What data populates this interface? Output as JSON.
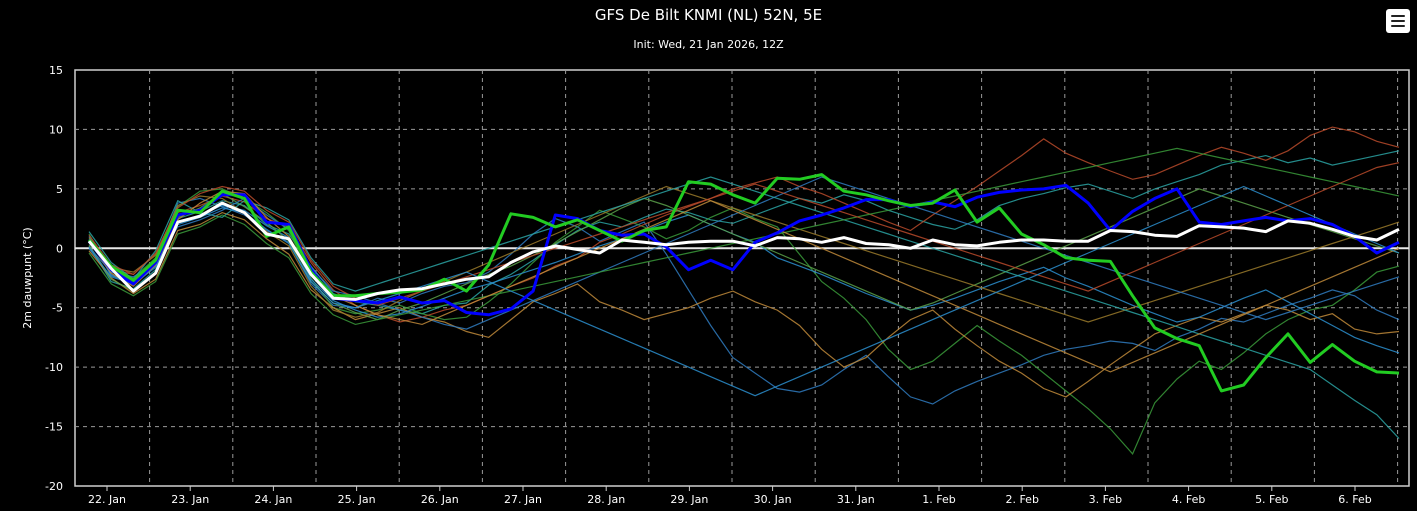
{
  "title": "GFS De Bilt KNMI (NL) 52N, 5E",
  "subtitle": "Init: Wed, 21 Jan 2026, 12Z",
  "menu_icon": "hamburger-menu-icon",
  "chart_data": {
    "type": "line",
    "ylabel": "2m dauwpunt (°C)",
    "ylim": [
      -20,
      15
    ],
    "y_ticks": [
      15,
      10,
      5,
      0,
      -5,
      -10,
      -15,
      -20
    ],
    "x_tick_labels": [
      "22. Jan",
      "23. Jan",
      "24. Jan",
      "25. Jan",
      "26. Jan",
      "27. Jan",
      "28. Jan",
      "29. Jan",
      "30. Jan",
      "31. Jan",
      "1. Feb",
      "2. Feb",
      "3. Feb",
      "4. Feb",
      "5. Feb",
      "6. Feb"
    ],
    "x_time_steps_per_day": 4,
    "grid": true,
    "zero_line": true,
    "colors": {
      "operational": "#0000ff",
      "control": "#22cc22",
      "mean": "#ffffff",
      "members": [
        "#2f7bbf",
        "#2aa3a3",
        "#3a9a3a",
        "#c08a3a",
        "#b84a2a",
        "#2c8fcf",
        "#5aa14a",
        "#9a7a2a"
      ]
    },
    "series": [
      {
        "role": "control",
        "values": [
          0.7,
          -1.5,
          -2.7,
          -1.0,
          3.2,
          3.0,
          4.8,
          4.2,
          1.0,
          1.8,
          -2.0,
          -4.0,
          -4.0,
          -3.8,
          -3.7,
          -3.5,
          -2.6,
          -3.6,
          -1.4,
          2.9,
          2.6,
          1.8,
          2.4,
          1.5,
          0.6,
          1.5,
          1.8,
          5.6,
          5.4,
          4.5,
          3.8,
          5.9,
          5.8,
          6.2,
          4.8,
          4.5,
          4.0,
          3.6,
          3.8,
          4.9,
          2.2,
          3.4,
          1.2,
          0.3,
          -0.8,
          -1.0,
          -1.1,
          -4.0,
          -6.7,
          -7.6,
          -8.2,
          -12.0,
          -11.5,
          -9.2,
          -7.2,
          -9.6,
          -8.1,
          -9.5,
          -10.4,
          -10.5
        ]
      },
      {
        "role": "operational",
        "values": [
          0.6,
          -1.8,
          -3.0,
          -1.2,
          2.8,
          3.2,
          4.5,
          4.5,
          2.2,
          2.0,
          -1.8,
          -4.2,
          -4.4,
          -4.6,
          -4.1,
          -4.6,
          -4.4,
          -5.4,
          -5.6,
          -5.1,
          -3.6,
          2.8,
          2.5,
          1.5,
          1.1,
          1.2,
          0.1,
          -1.8,
          -1.0,
          -1.8,
          0.5,
          1.3,
          2.3,
          2.8,
          3.4,
          4.1,
          4.1,
          3.5,
          3.9,
          3.5,
          4.3,
          4.7,
          4.9,
          5.0,
          5.3,
          3.8,
          1.5,
          3.1,
          4.2,
          5.0,
          2.2,
          2.0,
          2.3,
          2.6,
          2.3,
          2.5,
          2.0,
          1.0,
          -0.4,
          0.5
        ]
      },
      {
        "role": "mean",
        "values": [
          0.6,
          -1.7,
          -3.6,
          -2.1,
          2.2,
          2.7,
          3.8,
          3.0,
          1.2,
          0.8,
          -2.2,
          -4.2,
          -4.3,
          -3.8,
          -3.5,
          -3.4,
          -3.0,
          -2.6,
          -2.4,
          -1.2,
          -0.3,
          0.2,
          -0.1,
          -0.4,
          0.7,
          0.5,
          0.3,
          0.5,
          0.6,
          0.6,
          0.2,
          0.9,
          0.8,
          0.5,
          0.9,
          0.4,
          0.3,
          0.0,
          0.7,
          0.3,
          0.2,
          0.5,
          0.7,
          0.7,
          0.6,
          0.6,
          1.5,
          1.4,
          1.1,
          1.0,
          1.9,
          1.8,
          1.7,
          1.4,
          2.3,
          2.1,
          1.6,
          1.0,
          0.7,
          1.6
        ]
      },
      {
        "role": "member",
        "values": [
          0.8,
          -2.2,
          -3.1,
          -1.0,
          3.8,
          4.2,
          3.5,
          2.8,
          1.5,
          0.5,
          -3.0,
          -4.8,
          -5.0,
          -4.2,
          -4.6,
          -3.8,
          -3.2,
          -2.9,
          -2.0,
          -0.5,
          1.2,
          2.5,
          1.8,
          0.6,
          1.4,
          2.2,
          -0.5,
          -3.5,
          -6.5,
          -9.2,
          -10.5,
          -11.8,
          -12.1,
          -11.5,
          -10.2,
          -9.0,
          -10.8,
          -12.5,
          -13.1,
          -12.0,
          -11.2,
          -10.5,
          -9.8,
          -9.0,
          -8.5,
          -8.2,
          -7.8,
          -8.0,
          -8.6,
          -7.5,
          -6.8,
          -5.9,
          -6.2,
          -5.5,
          -4.8,
          -4.2,
          -3.5,
          -4.0,
          -5.2,
          -6.0
        ]
      },
      {
        "role": "member",
        "values": [
          0.2,
          -2.8,
          -3.4,
          -1.8,
          2.5,
          3.1,
          4.0,
          3.6,
          2.0,
          1.2,
          -1.5,
          -3.8,
          -4.5,
          -4.8,
          -5.2,
          -5.5,
          -4.8,
          -4.6,
          -3.1,
          -2.2,
          -1.0,
          0.3,
          1.5,
          2.2,
          1.8,
          2.6,
          3.3,
          3.0,
          2.4,
          2.1,
          2.8,
          3.5,
          4.2,
          3.8,
          4.5,
          4.0,
          3.2,
          2.6,
          2.0,
          1.6,
          2.4,
          3.6,
          4.2,
          4.6,
          5.1,
          5.4,
          4.8,
          4.2,
          5.0,
          5.6,
          6.2,
          7.0,
          7.4,
          7.8,
          7.2,
          7.6,
          7.0,
          7.4,
          7.8,
          8.2
        ]
      },
      {
        "role": "member",
        "values": [
          1.2,
          -2.0,
          -2.5,
          -0.8,
          3.5,
          4.8,
          5.0,
          4.2,
          3.0,
          1.5,
          -2.5,
          -5.0,
          -5.5,
          -5.2,
          -4.8,
          -5.5,
          -6.0,
          -5.8,
          -4.5,
          -3.0,
          -1.2,
          0.5,
          1.8,
          3.2,
          2.5,
          1.8,
          0.8,
          1.5,
          2.6,
          3.4,
          2.5,
          1.8,
          -0.5,
          -2.8,
          -4.2,
          -6.0,
          -8.5,
          -10.2,
          -9.5,
          -8.0,
          -6.5,
          -7.8,
          -9.0,
          -10.5,
          -12.0,
          -13.5,
          -15.2,
          -17.3,
          -13.0,
          -11.0,
          -9.5,
          -10.2,
          -8.8,
          -7.2,
          -6.0,
          -5.2,
          -4.8,
          -3.5,
          -2.0,
          -1.5
        ]
      },
      {
        "role": "member",
        "values": [
          -0.2,
          -2.5,
          -3.8,
          -2.6,
          1.5,
          2.0,
          3.0,
          2.4,
          0.8,
          -0.5,
          -3.5,
          -5.0,
          -6.0,
          -5.5,
          -5.0,
          -5.8,
          -6.2,
          -7.0,
          -7.5,
          -6.0,
          -4.5,
          -3.8,
          -3.0,
          -4.5,
          -5.2,
          -6.0,
          -5.5,
          -5.0,
          -4.2,
          -3.6,
          -4.5,
          -5.2,
          -6.5,
          -8.5,
          -10.0,
          -9.2,
          -7.5,
          -6.0,
          -5.2,
          -6.8,
          -8.2,
          -9.5,
          -10.5,
          -11.8,
          -12.5,
          -11.2,
          -9.8,
          -8.5,
          -7.2,
          -6.5,
          -5.8,
          -6.2,
          -5.5,
          -4.8,
          -5.2,
          -6.0,
          -5.5,
          -6.8,
          -7.2,
          -7.0
        ]
      },
      {
        "role": "member",
        "values": [
          0.5,
          -1.8,
          -2.2,
          -0.5,
          3.0,
          3.6,
          4.4,
          3.9,
          2.5,
          1.8,
          -1.2,
          -3.5,
          -4.8,
          -5.6,
          -6.2,
          -5.8,
          -5.2,
          -4.8,
          -4.0,
          -3.2,
          -2.5,
          -1.5,
          -0.8,
          0.5,
          1.2,
          2.0,
          2.8,
          3.5,
          4.2,
          5.0,
          5.5,
          6.0,
          5.2,
          4.6,
          3.8,
          3.0,
          2.2,
          1.5,
          2.8,
          4.0,
          5.2,
          6.5,
          7.8,
          9.2,
          8.0,
          7.2,
          6.5,
          5.8,
          6.2,
          7.0,
          7.8,
          8.5,
          8.0,
          7.4,
          8.2,
          9.5,
          10.2,
          9.8,
          9.0,
          8.5
        ]
      },
      {
        "role": "member",
        "values": [
          1.0,
          -2.3,
          -2.9,
          -1.5,
          2.2,
          2.8,
          3.6,
          3.2,
          1.9,
          0.9,
          -2.6,
          -4.4,
          -5.2,
          -5.8,
          -5.5,
          -4.9,
          -4.2,
          -3.5,
          -3.0,
          -2.4,
          -1.8,
          -1.2,
          -0.5,
          0.2,
          0.8,
          1.5,
          2.2,
          2.8,
          2.0,
          1.2,
          0.5,
          -0.8,
          -1.5,
          -2.2,
          -3.0,
          -3.8,
          -4.5,
          -5.2,
          -4.8,
          -4.2,
          -3.5,
          -2.8,
          -2.2,
          -1.6,
          -2.5,
          -3.2,
          -4.0,
          -4.8,
          -5.5,
          -6.2,
          -5.8,
          -5.0,
          -4.2,
          -3.5,
          -4.5,
          -5.5,
          -6.5,
          -7.5,
          -8.2,
          -8.8
        ]
      },
      {
        "role": "member",
        "values": [
          0.3,
          -2.6,
          -3.6,
          -2.0,
          2.6,
          3.4,
          4.6,
          3.5,
          2.2,
          0.6,
          -2.8,
          -4.6,
          -5.4,
          -6.0,
          -5.2,
          -4.6,
          -3.8,
          -3.0,
          -2.2,
          -1.5,
          -0.6,
          0.4,
          1.4,
          2.4,
          3.4,
          4.2,
          3.6,
          2.8,
          2.0,
          1.2,
          0.4,
          -0.4,
          -1.2,
          -2.0,
          -2.8,
          -3.6,
          -4.4,
          -5.2,
          -4.6,
          -3.8,
          -3.0,
          -2.2,
          -1.4,
          -0.6,
          0.2,
          1.0,
          1.8,
          2.6,
          3.4,
          4.2,
          5.0,
          4.4,
          3.8,
          3.2,
          2.6,
          2.0,
          1.4,
          0.8,
          0.2,
          -0.4
        ]
      },
      {
        "role": "member",
        "values": [
          0.9,
          -1.6,
          -2.0,
          -0.6,
          3.6,
          4.4,
          4.2,
          3.0,
          1.4,
          0.2,
          -3.2,
          -5.2,
          -5.8,
          -5.4,
          -4.4,
          -3.6,
          -2.8,
          -2.0,
          -1.2,
          -0.4,
          0.4,
          1.2,
          2.0,
          2.8,
          3.6,
          4.4,
          5.2,
          4.6,
          4.0,
          3.4,
          2.8,
          2.2,
          1.6,
          1.0,
          0.4,
          -0.2,
          -0.8,
          -1.4,
          -2.0,
          -2.6,
          -3.2,
          -3.8,
          -4.4,
          -5.0,
          -5.6,
          -6.2,
          -5.6,
          -5.0,
          -4.4,
          -3.8,
          -3.2,
          -2.6,
          -2.0,
          -1.4,
          -0.8,
          -0.2,
          0.4,
          1.0,
          1.6,
          2.2
        ]
      },
      {
        "role": "member",
        "values": [
          0.1,
          -2.0,
          -2.4,
          -1.2,
          1.8,
          2.4,
          3.2,
          4.2,
          2.8,
          1.6,
          -1.6,
          -3.6,
          -4.0,
          -4.6,
          -5.2,
          -5.8,
          -6.4,
          -6.8,
          -6.0,
          -5.2,
          -4.4,
          -3.6,
          -2.8,
          -2.0,
          -1.2,
          -0.4,
          0.4,
          1.2,
          2.0,
          2.8,
          3.6,
          4.4,
          5.2,
          6.0,
          5.4,
          4.8,
          4.2,
          3.6,
          3.0,
          2.4,
          1.8,
          1.2,
          0.6,
          0.0,
          -0.6,
          -1.2,
          -1.8,
          -2.4,
          -3.0,
          -3.6,
          -4.2,
          -4.8,
          -5.4,
          -6.0,
          -5.4,
          -4.8,
          -4.2,
          -3.6,
          -3.0,
          -2.4
        ]
      },
      {
        "role": "member",
        "values": [
          1.4,
          -1.2,
          -2.6,
          -0.2,
          4.0,
          3.0,
          2.6,
          4.0,
          3.4,
          2.4,
          -0.8,
          -3.0,
          -3.6,
          -3.0,
          -2.4,
          -1.8,
          -1.2,
          -0.6,
          0.0,
          0.6,
          1.2,
          1.8,
          2.4,
          3.0,
          3.6,
          4.2,
          4.8,
          5.4,
          6.0,
          5.4,
          4.8,
          4.2,
          3.6,
          3.0,
          2.4,
          1.8,
          1.2,
          0.6,
          0.0,
          -0.6,
          -1.2,
          -1.8,
          -2.4,
          -3.0,
          -3.6,
          -4.2,
          -4.8,
          -5.4,
          -6.0,
          -6.6,
          -7.2,
          -7.8,
          -8.4,
          -9.0,
          -9.6,
          -10.2,
          -11.5,
          -12.8,
          -14.0,
          -16.0
        ]
      },
      {
        "role": "member",
        "values": [
          -0.4,
          -3.0,
          -4.0,
          -2.8,
          1.2,
          1.8,
          2.8,
          2.0,
          0.4,
          -0.8,
          -3.8,
          -5.6,
          -6.4,
          -6.0,
          -5.6,
          -5.2,
          -4.8,
          -4.4,
          -4.0,
          -3.6,
          -3.2,
          -2.8,
          -2.4,
          -2.0,
          -1.6,
          -1.2,
          -0.8,
          -0.4,
          0.0,
          0.4,
          0.8,
          1.2,
          1.6,
          2.0,
          2.4,
          2.8,
          3.2,
          3.6,
          4.0,
          4.4,
          4.8,
          5.2,
          5.6,
          6.0,
          6.4,
          6.8,
          7.2,
          7.6,
          8.0,
          8.4,
          8.0,
          7.6,
          7.2,
          6.8,
          6.4,
          6.0,
          5.6,
          5.2,
          4.8,
          4.4
        ]
      },
      {
        "role": "member",
        "values": [
          0.6,
          -2.1,
          -3.2,
          -1.4,
          2.4,
          3.8,
          4.8,
          4.6,
          2.6,
          1.0,
          -2.2,
          -4.0,
          -4.8,
          -5.6,
          -6.0,
          -6.4,
          -5.6,
          -4.8,
          -4.0,
          -3.2,
          -2.4,
          -1.6,
          -0.8,
          0.0,
          0.8,
          1.6,
          2.4,
          3.2,
          4.0,
          3.2,
          2.4,
          1.6,
          0.8,
          0.0,
          -0.8,
          -1.6,
          -2.4,
          -3.2,
          -4.0,
          -4.8,
          -5.6,
          -6.4,
          -7.2,
          -8.0,
          -8.8,
          -9.6,
          -10.4,
          -9.6,
          -8.8,
          -8.0,
          -7.2,
          -6.4,
          -5.6,
          -4.8,
          -4.0,
          -3.2,
          -2.4,
          -1.6,
          -0.8,
          0.0
        ]
      },
      {
        "role": "member",
        "values": [
          1.1,
          -1.4,
          -2.2,
          -0.4,
          3.4,
          4.6,
          5.2,
          4.8,
          3.2,
          2.2,
          -1.0,
          -3.2,
          -4.2,
          -4.8,
          -4.2,
          -3.6,
          -3.0,
          -2.4,
          -1.8,
          -1.2,
          -0.6,
          0.0,
          0.6,
          1.2,
          1.8,
          2.4,
          3.0,
          3.6,
          4.2,
          4.8,
          5.4,
          4.8,
          4.2,
          3.6,
          3.0,
          2.4,
          1.8,
          1.2,
          0.6,
          0.0,
          -0.6,
          -1.2,
          -1.8,
          -2.4,
          -3.0,
          -3.6,
          -2.8,
          -2.0,
          -1.2,
          -0.4,
          0.4,
          1.2,
          2.0,
          2.8,
          3.6,
          4.4,
          5.2,
          6.0,
          6.8,
          7.2
        ]
      },
      {
        "role": "member",
        "values": [
          0.0,
          -2.4,
          -3.0,
          -1.6,
          2.0,
          2.6,
          3.4,
          3.0,
          1.6,
          0.4,
          -2.8,
          -4.6,
          -5.0,
          -4.4,
          -3.8,
          -3.2,
          -2.6,
          -2.0,
          -2.8,
          -3.6,
          -4.4,
          -5.2,
          -6.0,
          -6.8,
          -7.6,
          -8.4,
          -9.2,
          -10.0,
          -10.8,
          -11.6,
          -12.4,
          -11.6,
          -10.8,
          -10.0,
          -9.2,
          -8.4,
          -7.6,
          -6.8,
          -6.0,
          -5.2,
          -4.4,
          -3.6,
          -2.8,
          -2.0,
          -1.2,
          -0.4,
          0.4,
          1.2,
          2.0,
          2.8,
          3.6,
          4.4,
          5.2,
          4.4,
          3.6,
          2.8,
          2.0,
          1.2,
          0.4,
          -0.4
        ]
      }
    ]
  }
}
